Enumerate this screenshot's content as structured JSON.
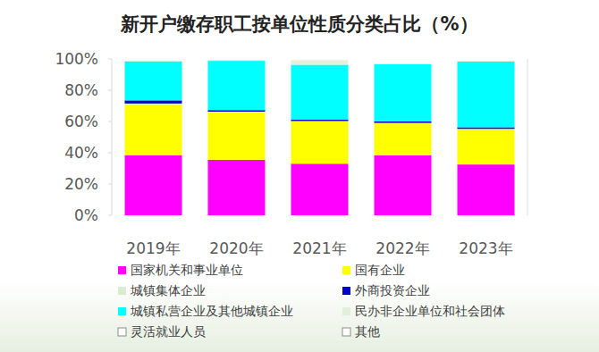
{
  "chart_data": {
    "type": "bar",
    "stacked": true,
    "title": "新开户缴存职工按单位性质分类占比（%）",
    "categories": [
      "2019年",
      "2020年",
      "2021年",
      "2022年",
      "2023年"
    ],
    "series": [
      {
        "name": "国家机关和事业单位",
        "color": "#ff00ff",
        "values": [
          38.5,
          35.5,
          33,
          38.3,
          32.5
        ]
      },
      {
        "name": "国有企业",
        "color": "#ffff00",
        "values": [
          32.5,
          30.5,
          27,
          20.5,
          22.5
        ]
      },
      {
        "name": "城镇集体企业",
        "color": "#d9ecd0",
        "values": [
          0.5,
          0.3,
          0.3,
          0.3,
          0.3
        ]
      },
      {
        "name": "外商投资企业",
        "color": "#0000cc",
        "values": [
          2,
          1,
          1,
          1,
          1
        ]
      },
      {
        "name": "城镇私营企业及其他城镇企业",
        "color": "#00ffff",
        "values": [
          25,
          31.5,
          35,
          36.5,
          42
        ]
      },
      {
        "name": "民办非企业单位和社会团体",
        "color": "#e2f0d9",
        "values": [
          0.5,
          0.7,
          3,
          0.5,
          0.7
        ]
      },
      {
        "name": "灵活就业人员",
        "color": "#ffffff",
        "values": [
          0.5,
          0.3,
          0.4,
          1.5,
          0.5
        ]
      },
      {
        "name": "其他",
        "color": "#ffffff",
        "values": [
          0.5,
          0.2,
          0.3,
          1.4,
          0.5
        ]
      }
    ],
    "ylim": [
      0,
      100
    ],
    "yticks": [
      {
        "value": 0,
        "label": "0%"
      },
      {
        "value": 20,
        "label": "20%"
      },
      {
        "value": 40,
        "label": "40%"
      },
      {
        "value": 60,
        "label": "60%"
      },
      {
        "value": 80,
        "label": "80%"
      },
      {
        "value": 100,
        "label": "100%"
      }
    ],
    "grid": false
  }
}
